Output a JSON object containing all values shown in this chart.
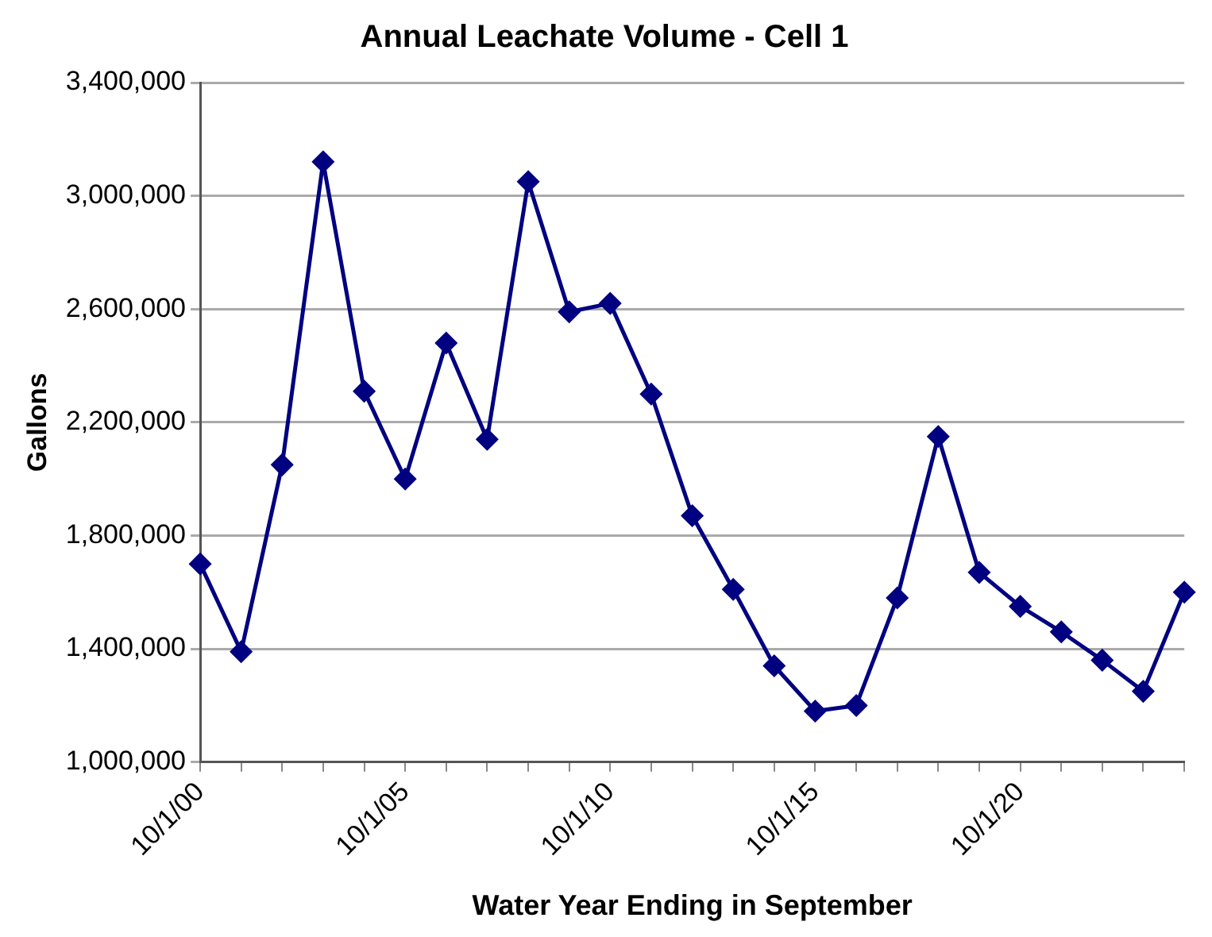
{
  "chart_data": {
    "type": "line",
    "title": "Annual Leachate Volume - Cell 1",
    "xlabel": "Water Year Ending in September",
    "ylabel": "Gallons",
    "x": [
      "2000-10-01",
      "2001-10-01",
      "2002-10-01",
      "2003-10-01",
      "2004-10-01",
      "2005-10-01",
      "2006-10-01",
      "2007-10-01",
      "2008-10-01",
      "2009-10-01",
      "2010-10-01",
      "2011-10-01",
      "2012-10-01",
      "2013-10-01",
      "2014-10-01",
      "2015-10-01",
      "2016-10-01",
      "2017-10-01",
      "2018-10-01",
      "2019-10-01",
      "2020-10-01",
      "2021-10-01",
      "2022-10-01",
      "2023-10-01",
      "2024-10-01"
    ],
    "series": [
      {
        "color": "#000080",
        "values": [
          1700000,
          1390000,
          2050000,
          3120000,
          2310000,
          2000000,
          2480000,
          2140000,
          3050000,
          2590000,
          2620000,
          2300000,
          1870000,
          1610000,
          1340000,
          1180000,
          1200000,
          1580000,
          2150000,
          1670000,
          1550000,
          1460000,
          1360000,
          1250000,
          1600000
        ]
      }
    ],
    "xlim": [
      "2000-10-01",
      "2024-10-01"
    ],
    "xticks": [
      {
        "value": "2000-10-01",
        "label": "10/1/00"
      },
      {
        "value": "2001-10-01",
        "label": null
      },
      {
        "value": "2002-10-01",
        "label": null
      },
      {
        "value": "2003-10-01",
        "label": null
      },
      {
        "value": "2004-10-01",
        "label": null
      },
      {
        "value": "2005-10-01",
        "label": "10/1/05"
      },
      {
        "value": "2006-10-01",
        "label": null
      },
      {
        "value": "2007-10-01",
        "label": null
      },
      {
        "value": "2008-10-01",
        "label": null
      },
      {
        "value": "2009-10-01",
        "label": null
      },
      {
        "value": "2010-10-01",
        "label": "10/1/10"
      },
      {
        "value": "2011-10-01",
        "label": null
      },
      {
        "value": "2012-10-01",
        "label": null
      },
      {
        "value": "2013-10-01",
        "label": null
      },
      {
        "value": "2014-10-01",
        "label": null
      },
      {
        "value": "2015-10-01",
        "label": "10/1/15"
      },
      {
        "value": "2016-10-01",
        "label": null
      },
      {
        "value": "2017-10-01",
        "label": null
      },
      {
        "value": "2018-10-01",
        "label": null
      },
      {
        "value": "2019-10-01",
        "label": null
      },
      {
        "value": "2020-10-01",
        "label": "10/1/20"
      },
      {
        "value": "2021-10-01",
        "label": null
      },
      {
        "value": "2022-10-01",
        "label": null
      },
      {
        "value": "2023-10-01",
        "label": null
      },
      {
        "value": "2024-10-01",
        "label": null
      }
    ],
    "ylim": [
      1000000,
      3400000
    ],
    "yticks": [
      {
        "value": 1000000,
        "label": "1,000,000"
      },
      {
        "value": 1400000,
        "label": "1,400,000"
      },
      {
        "value": 1800000,
        "label": "1,800,000"
      },
      {
        "value": 2200000,
        "label": "2,200,000"
      },
      {
        "value": 2600000,
        "label": "2,600,000"
      },
      {
        "value": 3000000,
        "label": "3,000,000"
      },
      {
        "value": 3400000,
        "label": "3,400,000"
      }
    ],
    "grid": "y",
    "legend": false,
    "marker": "diamond",
    "line_style": "solid"
  }
}
